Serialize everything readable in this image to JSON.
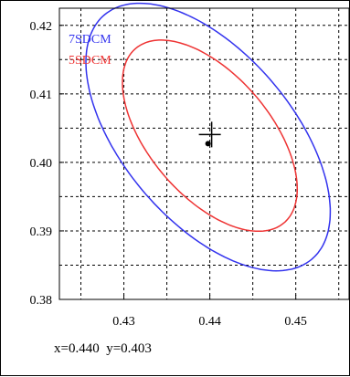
{
  "chart_data": {
    "type": "scatter",
    "title": "",
    "xlabel": "",
    "ylabel": "",
    "xlim": [
      0.4225,
      0.4562
    ],
    "ylim": [
      0.38,
      0.4225
    ],
    "grid": true,
    "x_ticks": [
      0.43,
      0.44,
      0.45
    ],
    "x_tick_labels": [
      "0.43",
      "0.44",
      "0.45"
    ],
    "y_ticks": [
      0.38,
      0.39,
      0.4,
      0.41,
      0.42
    ],
    "y_tick_labels": [
      "0.38",
      "0.39",
      "0.40",
      "0.41",
      "0.42"
    ],
    "legend_placement": "top-left",
    "series": [
      {
        "name": "7SDCM",
        "shape": "ellipse",
        "color": "#3333ee",
        "center": [
          0.4398,
          0.4037
        ],
        "rx": 0.0106,
        "ry": 0.0217,
        "tilt_deg": 30
      },
      {
        "name": "5SDCM",
        "shape": "ellipse",
        "color": "#ee3333",
        "center": [
          0.44,
          0.4039
        ],
        "rx": 0.0076,
        "ry": 0.0155,
        "tilt_deg": 30
      }
    ],
    "marker": {
      "x": 0.44,
      "y": 0.403
    },
    "readout": "x=0.440  y=0.403"
  }
}
